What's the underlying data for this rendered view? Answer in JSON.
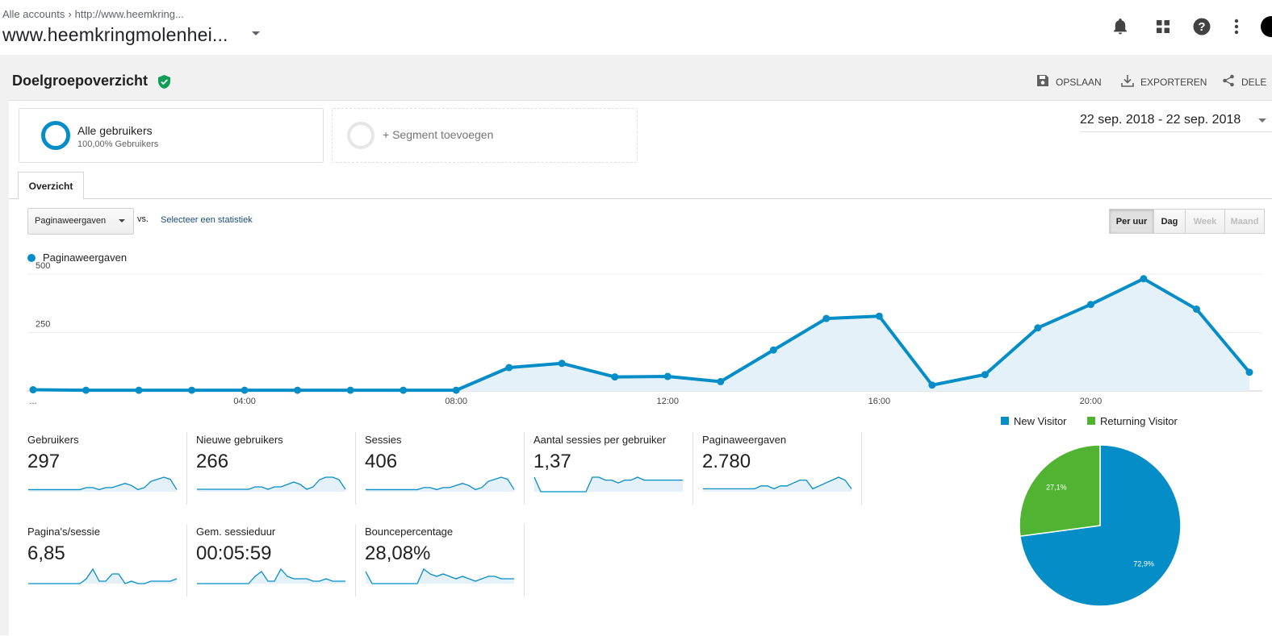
{
  "header": {
    "breadcrumb_accounts": "Alle accounts",
    "breadcrumb_url": "http://www.heemkring...",
    "property_name": "www.heemkringmolenhei...",
    "icons": [
      "bell-icon",
      "apps-icon",
      "help-icon",
      "more-vert-icon"
    ]
  },
  "report": {
    "title": "Doelgroepoverzicht",
    "actions": {
      "save": "OPSLAAN",
      "export": "EXPORTEREN",
      "share": "DELE"
    }
  },
  "segments": {
    "all_users_title": "Alle gebruikers",
    "all_users_sub": "100,00% Gebruikers",
    "add_segment": "+ Segment toevoegen"
  },
  "date_range": "22 sep. 2018 - 22 sep. 2018",
  "tab_label": "Overzicht",
  "controls": {
    "metric_select": "Paginaweergaven",
    "vs": "vs.",
    "compare_link": "Selecteer een statistiek",
    "granularity": [
      {
        "label": "Per uur",
        "state": "active"
      },
      {
        "label": "Dag",
        "state": "normal"
      },
      {
        "label": "Week",
        "state": "disabled"
      },
      {
        "label": "Maand",
        "state": "disabled"
      }
    ]
  },
  "colors": {
    "line": "#058dc7",
    "area": "#e5f1f9",
    "new_visitor": "#058dc7",
    "returning_visitor": "#50b432"
  },
  "chart_data": [
    {
      "type": "area",
      "legend": "Paginaweergaven",
      "x": [
        "00:00",
        "01:00",
        "02:00",
        "03:00",
        "04:00",
        "05:00",
        "06:00",
        "07:00",
        "08:00",
        "09:00",
        "10:00",
        "11:00",
        "12:00",
        "13:00",
        "14:00",
        "15:00",
        "16:00",
        "17:00",
        "18:00",
        "19:00",
        "20:00",
        "21:00",
        "22:00",
        "23:00"
      ],
      "xticks": [
        "...",
        "04:00",
        "08:00",
        "12:00",
        "16:00",
        "20:00"
      ],
      "yticks": [
        "250",
        "500"
      ],
      "values": [
        5,
        3,
        3,
        3,
        3,
        3,
        3,
        3,
        3,
        100,
        118,
        60,
        62,
        40,
        175,
        310,
        320,
        25,
        70,
        270,
        370,
        480,
        350,
        80
      ],
      "ylim": [
        0,
        500
      ],
      "grid": true
    },
    {
      "type": "pie",
      "labels": [
        "New Visitor",
        "Returning Visitor"
      ],
      "values": [
        72.9,
        27.1
      ],
      "value_labels": [
        "72,9%",
        "27,1%"
      ],
      "legend_position": "top"
    }
  ],
  "metrics": [
    {
      "label": "Gebruikers",
      "value": "297",
      "spark": [
        1,
        1,
        1,
        1,
        1,
        1,
        1,
        1,
        1,
        2,
        2,
        1,
        2,
        2,
        3,
        4,
        3,
        1,
        2,
        5,
        6,
        7,
        6,
        1
      ]
    },
    {
      "label": "Nieuwe gebruikers",
      "value": "266",
      "spark": [
        1,
        1,
        1,
        1,
        1,
        1,
        1,
        1,
        1,
        2,
        2,
        1,
        2,
        2,
        3,
        4,
        3,
        1,
        2,
        5,
        6,
        6,
        5,
        1
      ]
    },
    {
      "label": "Sessies",
      "value": "406",
      "spark": [
        1,
        1,
        1,
        1,
        1,
        1,
        1,
        1,
        1,
        2,
        2,
        1,
        2,
        2,
        3,
        4,
        3,
        1,
        2,
        5,
        6,
        7,
        6,
        1
      ]
    },
    {
      "label": "Aantal sessies per gebruiker",
      "value": "1,37",
      "spark": [
        5,
        0,
        0,
        0,
        0,
        0,
        0,
        0,
        0,
        5,
        5,
        4,
        4,
        3,
        4,
        4,
        5,
        4,
        4,
        4,
        4,
        4,
        4,
        4
      ]
    },
    {
      "label": "Paginaweergaven",
      "value": "2.780",
      "spark": [
        1,
        1,
        1,
        1,
        1,
        1,
        1,
        1,
        1,
        2,
        2,
        1,
        2,
        2,
        3,
        4,
        4,
        1,
        2,
        3,
        4,
        5,
        4,
        1
      ]
    },
    {
      "label": "Pagina's/sessie",
      "value": "6,85",
      "spark": [
        0,
        0,
        0,
        0,
        0,
        0,
        0,
        0,
        0,
        2,
        6,
        1,
        1,
        4,
        4,
        0,
        1,
        0,
        0,
        1,
        1,
        1,
        1,
        2
      ]
    },
    {
      "label": "Gem. sessieduur",
      "value": "00:05:59",
      "spark": [
        0,
        0,
        0,
        0,
        0,
        0,
        0,
        0,
        0,
        3,
        5,
        1,
        1,
        6,
        3,
        2,
        2,
        2,
        1,
        1,
        2,
        1,
        1,
        1
      ]
    },
    {
      "label": "Bouncepercentage",
      "value": "28,08%",
      "spark": [
        5,
        0,
        0,
        0,
        0,
        0,
        0,
        0,
        0,
        6,
        4,
        3,
        4,
        3,
        2,
        3,
        2,
        1,
        2,
        3,
        3,
        2,
        2,
        2
      ]
    }
  ]
}
